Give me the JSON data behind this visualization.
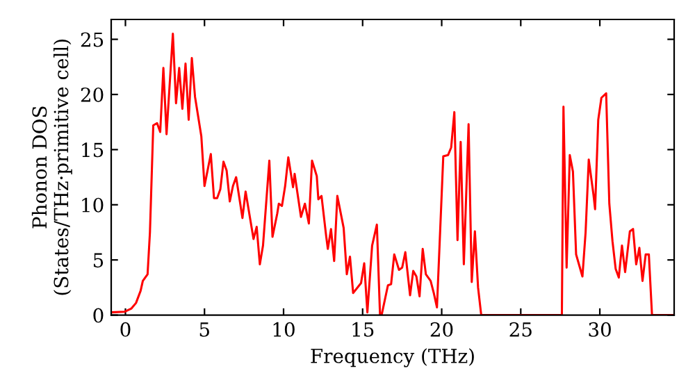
{
  "chart_data": {
    "type": "line",
    "xlabel": "Frequency (THz)",
    "ylabel": "Phonon DOS\n(States/THz·primitive cell)",
    "xlim": [
      -0.9,
      34.7
    ],
    "ylim": [
      0,
      26.8
    ],
    "xticks": [
      0,
      5,
      10,
      15,
      20,
      25,
      30
    ],
    "yticks": [
      0,
      5,
      10,
      15,
      20,
      25
    ],
    "grid": false,
    "legend": false,
    "marker": "none",
    "line_style": "solid",
    "series": [
      {
        "color": "#ff0000",
        "x": [
          -0.9,
          -0.06,
          0.38,
          0.67,
          0.96,
          1.1,
          1.4,
          1.55,
          1.76,
          2.0,
          2.2,
          2.4,
          2.6,
          3.0,
          3.2,
          3.4,
          3.6,
          3.8,
          4.0,
          4.2,
          4.4,
          4.8,
          5.0,
          5.4,
          5.6,
          5.8,
          6.0,
          6.2,
          6.4,
          6.6,
          6.8,
          7.0,
          7.4,
          7.6,
          8.1,
          8.3,
          8.5,
          8.7,
          9.1,
          9.3,
          9.6,
          9.7,
          9.9,
          10.1,
          10.3,
          10.6,
          10.7,
          11.1,
          11.35,
          11.6,
          11.8,
          12.1,
          12.2,
          12.4,
          12.7,
          12.8,
          13.0,
          13.2,
          13.4,
          13.8,
          14.0,
          14.2,
          14.4,
          14.9,
          15.1,
          15.3,
          15.6,
          15.9,
          16.1,
          16.2,
          16.6,
          16.8,
          17.0,
          17.3,
          17.5,
          17.7,
          18.0,
          18.2,
          18.4,
          18.6,
          18.8,
          19.0,
          19.3,
          19.5,
          19.7,
          20.1,
          20.4,
          20.6,
          20.8,
          21.0,
          21.2,
          21.4,
          21.7,
          21.9,
          22.1,
          22.3,
          22.5,
          27.6,
          27.7,
          27.9,
          28.1,
          28.3,
          28.5,
          28.9,
          29.1,
          29.3,
          29.6,
          29.7,
          29.9,
          30.1,
          30.4,
          30.6,
          30.8,
          31.0,
          31.2,
          31.4,
          31.6,
          31.9,
          32.1,
          32.3,
          32.5,
          32.7,
          32.9,
          33.1,
          33.3,
          34.7
        ],
        "values": [
          0.25,
          0.3,
          0.6,
          1.1,
          2.2,
          3.1,
          3.7,
          7.5,
          17.2,
          17.4,
          16.6,
          22.4,
          16.4,
          25.5,
          19.2,
          22.4,
          18.7,
          22.8,
          17.7,
          23.3,
          19.8,
          16.2,
          11.7,
          14.6,
          10.6,
          10.6,
          11.4,
          13.9,
          13.1,
          10.3,
          11.7,
          12.5,
          8.8,
          11.2,
          6.9,
          8.0,
          4.6,
          6.3,
          14.0,
          7.1,
          9.2,
          10.1,
          9.9,
          11.7,
          14.3,
          11.6,
          12.8,
          8.9,
          10.1,
          8.3,
          14.0,
          12.6,
          10.5,
          10.8,
          7.1,
          6.0,
          7.8,
          4.9,
          10.8,
          7.9,
          3.7,
          5.3,
          2.0,
          2.9,
          4.7,
          0.25,
          6.3,
          8.2,
          0,
          0,
          2.7,
          2.8,
          5.5,
          4.1,
          4.3,
          5.7,
          1.8,
          4.0,
          3.5,
          1.7,
          6.0,
          3.7,
          3.1,
          2.0,
          0.7,
          14.4,
          14.5,
          15.2,
          18.4,
          6.8,
          15.7,
          4.6,
          17.3,
          3.0,
          7.6,
          2.5,
          0,
          0,
          18.9,
          4.3,
          14.5,
          13.0,
          5.5,
          3.5,
          7.5,
          14.1,
          10.9,
          9.6,
          17.7,
          19.7,
          20.1,
          10.1,
          6.7,
          4.2,
          3.4,
          6.3,
          3.9,
          7.6,
          7.8,
          4.6,
          6.1,
          3.1,
          5.5,
          5.5,
          0,
          0
        ]
      }
    ]
  }
}
